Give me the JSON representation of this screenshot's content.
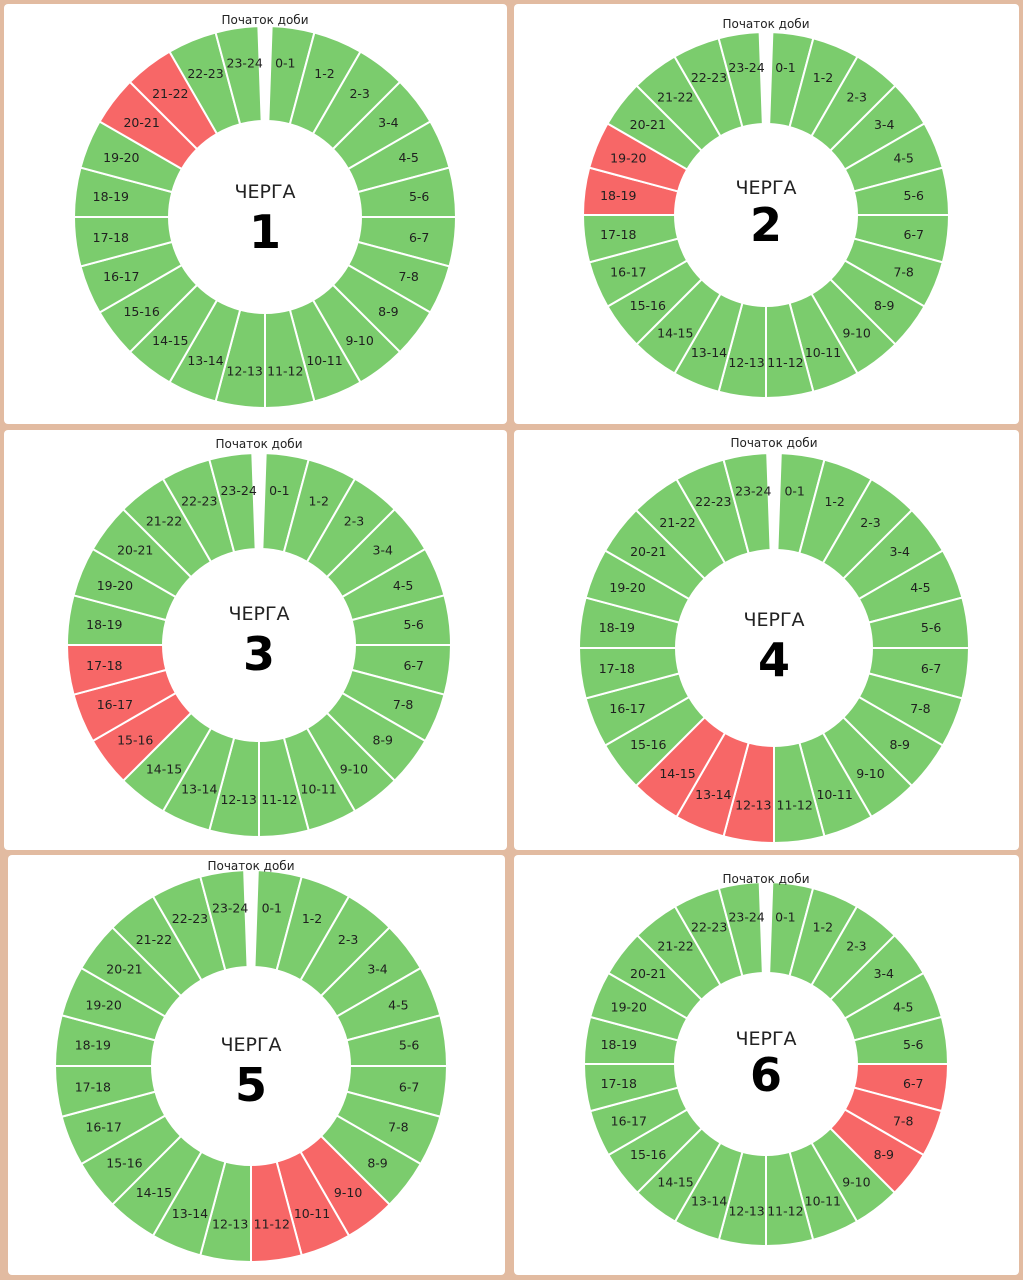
{
  "colors": {
    "on": "#7bcc6d",
    "off": "#f76767",
    "separator": "#ffffff",
    "panel": "#ffffff",
    "background": "#e2bba1"
  },
  "legend": {
    "start_label": "Початок доби",
    "queue_word": "ЧЕРГА"
  },
  "chart_data": [
    {
      "type": "pie",
      "variant": "donut-24h",
      "title": "ЧЕРГА",
      "queue_number": "1",
      "categories": [
        "0-1",
        "1-2",
        "2-3",
        "3-4",
        "4-5",
        "5-6",
        "6-7",
        "7-8",
        "8-9",
        "9-10",
        "10-11",
        "11-12",
        "12-13",
        "13-14",
        "14-15",
        "15-16",
        "16-17",
        "17-18",
        "18-19",
        "19-20",
        "20-21",
        "21-22",
        "22-23",
        "23-24"
      ],
      "values": [
        0,
        0,
        0,
        0,
        0,
        0,
        0,
        0,
        0,
        0,
        0,
        0,
        0,
        0,
        0,
        0,
        0,
        0,
        0,
        0,
        1,
        1,
        0,
        0
      ],
      "value_meaning": "1 = red segment, 0 = green segment"
    },
    {
      "type": "pie",
      "variant": "donut-24h",
      "title": "ЧЕРГА",
      "queue_number": "2",
      "categories": [
        "0-1",
        "1-2",
        "2-3",
        "3-4",
        "4-5",
        "5-6",
        "6-7",
        "7-8",
        "8-9",
        "9-10",
        "10-11",
        "11-12",
        "12-13",
        "13-14",
        "14-15",
        "15-16",
        "16-17",
        "17-18",
        "18-19",
        "19-20",
        "20-21",
        "21-22",
        "22-23",
        "23-24"
      ],
      "values": [
        0,
        0,
        0,
        0,
        0,
        0,
        0,
        0,
        0,
        0,
        0,
        0,
        0,
        0,
        0,
        0,
        0,
        0,
        1,
        1,
        0,
        0,
        0,
        0
      ],
      "value_meaning": "1 = red segment, 0 = green segment"
    },
    {
      "type": "pie",
      "variant": "donut-24h",
      "title": "ЧЕРГА",
      "queue_number": "3",
      "categories": [
        "0-1",
        "1-2",
        "2-3",
        "3-4",
        "4-5",
        "5-6",
        "6-7",
        "7-8",
        "8-9",
        "9-10",
        "10-11",
        "11-12",
        "12-13",
        "13-14",
        "14-15",
        "15-16",
        "16-17",
        "17-18",
        "18-19",
        "19-20",
        "20-21",
        "21-22",
        "22-23",
        "23-24"
      ],
      "values": [
        0,
        0,
        0,
        0,
        0,
        0,
        0,
        0,
        0,
        0,
        0,
        0,
        0,
        0,
        0,
        1,
        1,
        1,
        0,
        0,
        0,
        0,
        0,
        0
      ],
      "value_meaning": "1 = red segment, 0 = green segment"
    },
    {
      "type": "pie",
      "variant": "donut-24h",
      "title": "ЧЕРГА",
      "queue_number": "4",
      "categories": [
        "0-1",
        "1-2",
        "2-3",
        "3-4",
        "4-5",
        "5-6",
        "6-7",
        "7-8",
        "8-9",
        "9-10",
        "10-11",
        "11-12",
        "12-13",
        "13-14",
        "14-15",
        "15-16",
        "16-17",
        "17-18",
        "18-19",
        "19-20",
        "20-21",
        "21-22",
        "22-23",
        "23-24"
      ],
      "values": [
        0,
        0,
        0,
        0,
        0,
        0,
        0,
        0,
        0,
        0,
        0,
        0,
        1,
        1,
        1,
        0,
        0,
        0,
        0,
        0,
        0,
        0,
        0,
        0
      ],
      "value_meaning": "1 = red segment, 0 = green segment"
    },
    {
      "type": "pie",
      "variant": "donut-24h",
      "title": "ЧЕРГА",
      "queue_number": "5",
      "categories": [
        "0-1",
        "1-2",
        "2-3",
        "3-4",
        "4-5",
        "5-6",
        "6-7",
        "7-8",
        "8-9",
        "9-10",
        "10-11",
        "11-12",
        "12-13",
        "13-14",
        "14-15",
        "15-16",
        "16-17",
        "17-18",
        "18-19",
        "19-20",
        "20-21",
        "21-22",
        "22-23",
        "23-24"
      ],
      "values": [
        0,
        0,
        0,
        0,
        0,
        0,
        0,
        0,
        0,
        1,
        1,
        1,
        0,
        0,
        0,
        0,
        0,
        0,
        0,
        0,
        0,
        0,
        0,
        0
      ],
      "value_meaning": "1 = red segment, 0 = green segment"
    },
    {
      "type": "pie",
      "variant": "donut-24h",
      "title": "ЧЕРГА",
      "queue_number": "6",
      "categories": [
        "0-1",
        "1-2",
        "2-3",
        "3-4",
        "4-5",
        "5-6",
        "6-7",
        "7-8",
        "8-9",
        "9-10",
        "10-11",
        "11-12",
        "12-13",
        "13-14",
        "14-15",
        "15-16",
        "16-17",
        "17-18",
        "18-19",
        "19-20",
        "20-21",
        "21-22",
        "22-23",
        "23-24"
      ],
      "values": [
        0,
        0,
        0,
        0,
        0,
        0,
        1,
        1,
        1,
        0,
        0,
        0,
        0,
        0,
        0,
        0,
        0,
        0,
        0,
        0,
        0,
        0,
        0,
        0
      ],
      "value_meaning": "1 = red segment, 0 = green segment"
    }
  ]
}
